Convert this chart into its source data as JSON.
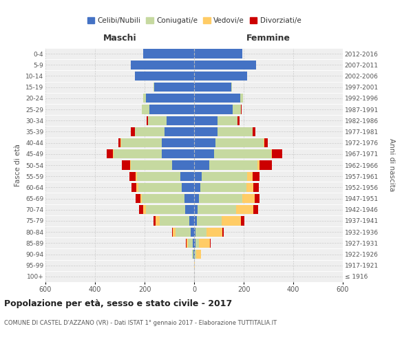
{
  "age_groups": [
    "100+",
    "95-99",
    "90-94",
    "85-89",
    "80-84",
    "75-79",
    "70-74",
    "65-69",
    "60-64",
    "55-59",
    "50-54",
    "45-49",
    "40-44",
    "35-39",
    "30-34",
    "25-29",
    "20-24",
    "15-19",
    "10-14",
    "5-9",
    "0-4"
  ],
  "birth_years": [
    "≤ 1916",
    "1917-1921",
    "1922-1926",
    "1927-1931",
    "1932-1936",
    "1937-1941",
    "1942-1946",
    "1947-1951",
    "1952-1956",
    "1957-1961",
    "1962-1966",
    "1967-1971",
    "1972-1976",
    "1977-1981",
    "1982-1986",
    "1987-1991",
    "1992-1996",
    "1997-2001",
    "2002-2006",
    "2007-2011",
    "2012-2016"
  ],
  "maschi": {
    "celibi": [
      0,
      0,
      2,
      5,
      15,
      20,
      35,
      40,
      50,
      55,
      90,
      130,
      130,
      120,
      110,
      180,
      195,
      160,
      240,
      255,
      205
    ],
    "coniugati": [
      0,
      1,
      5,
      20,
      60,
      120,
      160,
      170,
      175,
      175,
      165,
      195,
      165,
      120,
      75,
      30,
      10,
      5,
      0,
      0,
      0
    ],
    "vedovi": [
      0,
      0,
      2,
      5,
      10,
      15,
      10,
      8,
      8,
      5,
      2,
      2,
      1,
      0,
      0,
      0,
      0,
      0,
      0,
      0,
      0
    ],
    "divorziati": [
      0,
      0,
      0,
      2,
      5,
      8,
      18,
      18,
      20,
      25,
      35,
      25,
      10,
      15,
      8,
      2,
      0,
      0,
      0,
      0,
      0
    ]
  },
  "femmine": {
    "nubili": [
      0,
      0,
      2,
      5,
      5,
      10,
      15,
      20,
      25,
      30,
      60,
      80,
      85,
      95,
      95,
      155,
      185,
      150,
      215,
      250,
      195
    ],
    "coniugate": [
      0,
      0,
      5,
      15,
      45,
      100,
      155,
      175,
      185,
      185,
      195,
      230,
      195,
      140,
      80,
      35,
      12,
      3,
      0,
      0,
      0
    ],
    "vedove": [
      0,
      2,
      20,
      45,
      65,
      80,
      70,
      50,
      30,
      20,
      10,
      5,
      3,
      1,
      0,
      0,
      0,
      0,
      0,
      0,
      0
    ],
    "divorziate": [
      0,
      0,
      0,
      2,
      5,
      12,
      18,
      20,
      22,
      28,
      50,
      40,
      15,
      12,
      8,
      2,
      0,
      0,
      0,
      0,
      0
    ]
  },
  "colors": {
    "celibi": "#4472C4",
    "coniugati": "#C6D9A0",
    "vedovi": "#FFCC66",
    "divorziati": "#CC0000"
  },
  "title": "Popolazione per età, sesso e stato civile - 2017",
  "subtitle": "COMUNE DI CASTEL D'AZZANO (VR) - Dati ISTAT 1° gennaio 2017 - Elaborazione TUTTITALIA.IT",
  "xlabel_left": "Maschi",
  "xlabel_right": "Femmine",
  "ylabel_left": "Fasce di età",
  "ylabel_right": "Anni di nascita",
  "xlim": 600,
  "legend_labels": [
    "Celibi/Nubili",
    "Coniugati/e",
    "Vedovi/e",
    "Divorziati/e"
  ],
  "background_color": "#ffffff",
  "plot_bg_color": "#efefef",
  "grid_color": "#cccccc"
}
